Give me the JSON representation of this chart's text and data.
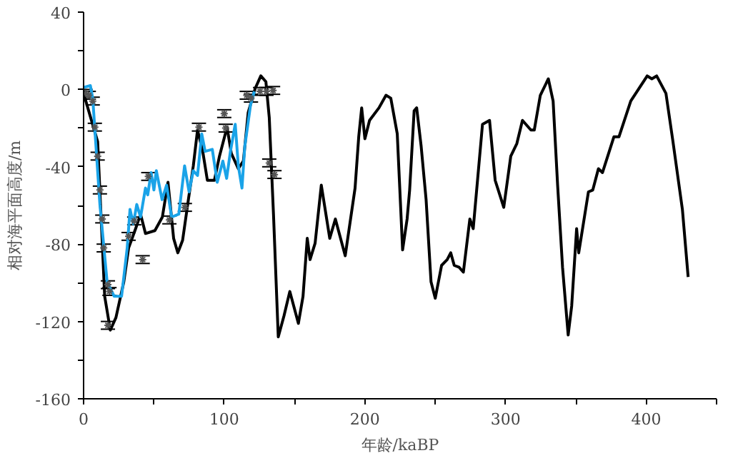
{
  "chart_data": {
    "type": "line",
    "xlabel": "年龄/kaBP",
    "ylabel": "相对海平面高度/m",
    "xlim": [
      0,
      450
    ],
    "ylim": [
      -160,
      40
    ],
    "xticks": [
      0,
      {
        "value": 50,
        "label": null
      },
      100,
      {
        "value": 150,
        "label": null
      },
      200,
      {
        "value": 250,
        "label": null
      },
      300,
      {
        "value": 350,
        "label": null
      },
      400,
      {
        "value": 450,
        "label": null
      }
    ],
    "yticks": [
      -160,
      {
        "value": -140,
        "label": null
      },
      -120,
      {
        "value": -100,
        "label": null
      },
      -80,
      {
        "value": -60,
        "label": null
      },
      -40,
      {
        "value": -20,
        "label": null
      },
      0,
      {
        "value": 20,
        "label": null
      },
      40
    ],
    "grid": false,
    "line_style": "solid",
    "series": [
      {
        "color": "#000000",
        "x": [
          0,
          10,
          15,
          19,
          23,
          28.6,
          32,
          37,
          40.5,
          44,
          50.7,
          56,
          60,
          64,
          67,
          70.4,
          74.5,
          78,
          81,
          84.7,
          88,
          93,
          96.6,
          102,
          105,
          110,
          113.6,
          117,
          122,
          126,
          129.6,
          132,
          135,
          138.4,
          142.5,
          146.6,
          152.7,
          156,
          159,
          161,
          164.6,
          169,
          175,
          179,
          186,
          193,
          195.6,
          197.7,
          200,
          203.3,
          210,
          215,
          218.4,
          223,
          226.8,
          230,
          231.8,
          235,
          236.8,
          240,
          243.5,
          247,
          250,
          254.5,
          258.5,
          261,
          263.5,
          267,
          270,
          274.6,
          277,
          283.6,
          288.6,
          292.6,
          298.7,
          303.7,
          308,
          312,
          318,
          320.4,
          324.7,
          330.4,
          333.8,
          337,
          340.5,
          344.5,
          347,
          350.5,
          352,
          358.9,
          362,
          366,
          368.9,
          377,
          380.6,
          389,
          400.7,
          404,
          407.4,
          414,
          419,
          425.7,
          429.8
        ],
        "values": [
          -2,
          -27,
          -107,
          -124.5,
          -118,
          -99.5,
          -82,
          -72,
          -64.5,
          -74.5,
          -73,
          -66,
          -48,
          -77,
          -84.5,
          -78,
          -57,
          -39.5,
          -21,
          -32,
          -47,
          -47,
          -34.5,
          -19.5,
          -33,
          -41,
          -37,
          -12,
          0.5,
          7,
          4,
          -14.5,
          -64.5,
          -128,
          -117,
          -104.5,
          -121,
          -107,
          -77,
          -88,
          -79.5,
          -49.5,
          -77,
          -67,
          -86,
          -51,
          -24.5,
          -9.5,
          -25.5,
          -16,
          -9.5,
          -3,
          -4.5,
          -23,
          -83,
          -67,
          -52,
          -11,
          -9.5,
          -29.5,
          -57,
          -99.5,
          -108,
          -91,
          -88,
          -84.5,
          -91,
          -92,
          -94.5,
          -67,
          -72,
          -18,
          -16,
          -47,
          -61,
          -34.5,
          -28,
          -16,
          -21,
          -21,
          -3,
          5.5,
          -6,
          -49.5,
          -92,
          -127,
          -112,
          -72,
          -84.5,
          -53,
          -52,
          -41,
          -43,
          -24.5,
          -24.5,
          -6,
          7,
          5.5,
          7,
          -2,
          -27,
          -62,
          -97
        ]
      },
      {
        "color": "#1aa3e8",
        "x": [
          0,
          4.8,
          6.5,
          11.6,
          16.7,
          21.8,
          27,
          31,
          33,
          35.4,
          37.8,
          40.5,
          44,
          45.6,
          48,
          50,
          51.7,
          55.8,
          59,
          62.6,
          67.7,
          71.8,
          75,
          78,
          81,
          84,
          86.4,
          91.5,
          95,
          99,
          101.7,
          104.4,
          107.8,
          110,
          112.6,
          114.6,
          118.7,
          121.4
        ],
        "values": [
          1,
          2,
          -4.5,
          -59.5,
          -99.5,
          -107,
          -107,
          -82,
          -62,
          -69.5,
          -59.5,
          -66,
          -51,
          -54.5,
          -43,
          -52,
          -42,
          -57,
          -49.5,
          -66,
          -64.5,
          -39.5,
          -53,
          -42,
          -44.5,
          -23,
          -32,
          -31,
          -48,
          -37,
          -46,
          -32,
          -18,
          -39.5,
          -51,
          -29.5,
          -8,
          -1
        ]
      },
      {
        "type": "scatter",
        "color": "#555555",
        "marker": "cross",
        "x": [
          1.4,
          3.7,
          6.5,
          8,
          10,
          11.6,
          13.3,
          14.3,
          17.3,
          18.4,
          17.3,
          32,
          36,
          42,
          46,
          61,
          72,
          82,
          100,
          101,
          116,
          119,
          125.5,
          130,
          134.7,
          132,
          135.7
        ],
        "values": [
          -2,
          -3,
          -6,
          -19.5,
          -34.5,
          -52,
          -67,
          -82,
          -101,
          -104.5,
          -122,
          -76,
          -68,
          -88,
          -45,
          -67.5,
          -61,
          -19.5,
          -12.5,
          -20,
          -3,
          -4.5,
          -1,
          -1,
          -0.5,
          -38,
          -44
        ],
        "errors": [
          2,
          2,
          2,
          2,
          2,
          2,
          2,
          2,
          2,
          2,
          2,
          2,
          2,
          2,
          2,
          2,
          2,
          2,
          2,
          2,
          2,
          2,
          2,
          2,
          2,
          2,
          2
        ]
      }
    ]
  }
}
